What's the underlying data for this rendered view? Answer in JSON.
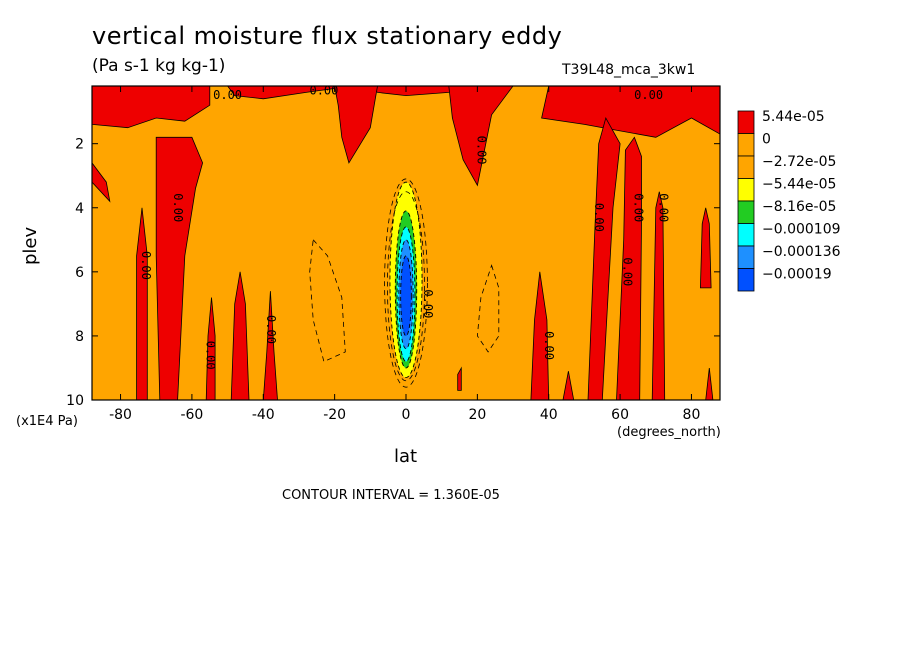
{
  "header": {
    "title": "vertical moisture flux stationary eddy",
    "units": "(Pa s-1 kg kg-1)",
    "run": "T39L48_mca_3kw1"
  },
  "footer": {
    "contour_interval": "CONTOUR INTERVAL = 1.360E-05"
  },
  "colors": {
    "red": "#ee0000",
    "orange": "#ffa500",
    "yellow": "#ffff00",
    "green": "#22cc22",
    "cyan": "#00ffff",
    "sky": "#1e90ff",
    "blue": "#0050ff"
  },
  "chart_data": {
    "type": "heatmap",
    "title": "vertical moisture flux stationary eddy",
    "subtitle": "(Pa s-1 kg kg-1)",
    "xlabel": "lat",
    "xunit": "(degrees_north)",
    "ylabel": "plev",
    "yunit": "(x1E4 Pa)",
    "xlim": [
      -88,
      88
    ],
    "ylim": [
      10,
      0.2
    ],
    "xticks": [
      -80,
      -60,
      -40,
      -20,
      0,
      20,
      40,
      60,
      80
    ],
    "yticks": [
      2,
      4,
      6,
      8,
      10
    ],
    "legend": {
      "placement": "right",
      "levels": [
        "5.44e-05",
        "0",
        "-2.72e-05",
        "-5.44e-05",
        "-8.16e-05",
        "-0.000109",
        "-0.000136",
        "-0.00019"
      ],
      "colors": [
        "#ee0000",
        "#ffa500",
        "#ffa500",
        "#ffff00",
        "#22cc22",
        "#00ffff",
        "#1e90ff",
        "#0050ff"
      ]
    },
    "background_level": "-2.72e-05",
    "contour_label": "0.00",
    "positive_regions": [
      {
        "name": "top-band-west",
        "polygon": [
          [
            -88,
            0.2
          ],
          [
            -55,
            0.2
          ],
          [
            -55,
            0.8
          ],
          [
            -62,
            1.3
          ],
          [
            -70,
            1.2
          ],
          [
            -78,
            1.5
          ],
          [
            -88,
            1.4
          ]
        ]
      },
      {
        "name": "top-band-central",
        "polygon": [
          [
            -50,
            0.2
          ],
          [
            -15,
            0.2
          ],
          [
            -28,
            0.4
          ],
          [
            -40,
            0.6
          ],
          [
            -48,
            0.5
          ]
        ]
      },
      {
        "name": "top-band-south",
        "polygon": [
          [
            -10,
            0.2
          ],
          [
            25,
            0.2
          ],
          [
            12,
            0.4
          ],
          [
            0,
            0.5
          ],
          [
            -8,
            0.4
          ]
        ]
      },
      {
        "name": "plume-left-of-equator",
        "polygon": [
          [
            -20,
            0.2
          ],
          [
            -8,
            0.2
          ],
          [
            -10,
            1.5
          ],
          [
            -16,
            2.6
          ],
          [
            -18,
            1.8
          ],
          [
            -19,
            0.8
          ]
        ]
      },
      {
        "name": "plume-20n",
        "polygon": [
          [
            12,
            0.2
          ],
          [
            30,
            0.2
          ],
          [
            24,
            1.1
          ],
          [
            22,
            2.2
          ],
          [
            20,
            3.3
          ],
          [
            16,
            2.5
          ],
          [
            13,
            1.2
          ]
        ]
      },
      {
        "name": "top-band-east",
        "polygon": [
          [
            40,
            0.2
          ],
          [
            88,
            0.2
          ],
          [
            88,
            1.7
          ],
          [
            80,
            1.2
          ],
          [
            70,
            1.8
          ],
          [
            60,
            1.6
          ],
          [
            50,
            1.4
          ],
          [
            38,
            1.2
          ]
        ]
      },
      {
        "name": "west-edge",
        "polygon": [
          [
            -88,
            2.6
          ],
          [
            -84,
            3.2
          ],
          [
            -83,
            3.8
          ],
          [
            -88,
            3.2
          ]
        ]
      },
      {
        "name": "tongue-n68",
        "polygon": [
          [
            -70,
            1.8
          ],
          [
            -60,
            1.8
          ],
          [
            -57,
            2.6
          ],
          [
            -59,
            3.4
          ],
          [
            -62,
            5.5
          ],
          [
            -64,
            10
          ],
          [
            -69,
            10
          ],
          [
            -70,
            5.5
          ]
        ]
      },
      {
        "name": "spike-n74",
        "polygon": [
          [
            -75.5,
            10
          ],
          [
            -75.5,
            5.5
          ],
          [
            -74,
            4.0
          ],
          [
            -72.5,
            5.5
          ],
          [
            -72.5,
            10
          ]
        ]
      },
      {
        "name": "spike-n55",
        "polygon": [
          [
            -56,
            10
          ],
          [
            -55.5,
            8
          ],
          [
            -54.5,
            6.8
          ],
          [
            -53.5,
            8
          ],
          [
            -53.5,
            10
          ]
        ]
      },
      {
        "name": "spike-n47",
        "polygon": [
          [
            -49,
            10
          ],
          [
            -48,
            7
          ],
          [
            -46.5,
            6.0
          ],
          [
            -45,
            7
          ],
          [
            -44,
            10
          ]
        ]
      },
      {
        "name": "spike-n38",
        "polygon": [
          [
            -40,
            10
          ],
          [
            -39,
            8.5
          ],
          [
            -38,
            6.6
          ],
          [
            -37,
            8.5
          ],
          [
            -36,
            10
          ]
        ]
      },
      {
        "name": "spike-15n",
        "polygon": [
          [
            14.5,
            9.2
          ],
          [
            15.5,
            9.0
          ],
          [
            15.5,
            9.7
          ],
          [
            14.5,
            9.7
          ]
        ]
      },
      {
        "name": "spike-37n",
        "polygon": [
          [
            35,
            10
          ],
          [
            36,
            7.5
          ],
          [
            37.5,
            6.0
          ],
          [
            39.5,
            7.5
          ],
          [
            40,
            10
          ]
        ]
      },
      {
        "name": "spike-46n",
        "polygon": [
          [
            44,
            10
          ],
          [
            45.5,
            9.1
          ],
          [
            47,
            10
          ]
        ]
      },
      {
        "name": "plume-53n",
        "polygon": [
          [
            51,
            10
          ],
          [
            53,
            4.5
          ],
          [
            54,
            2.0
          ],
          [
            56,
            1.2
          ],
          [
            60,
            2.0
          ],
          [
            58,
            4
          ],
          [
            56,
            8
          ],
          [
            55,
            10
          ]
        ]
      },
      {
        "name": "plume-62n",
        "polygon": [
          [
            59,
            10
          ],
          [
            61,
            5
          ],
          [
            61.5,
            2.2
          ],
          [
            64,
            1.8
          ],
          [
            66,
            2.4
          ],
          [
            66,
            4.5
          ],
          [
            65.5,
            10
          ]
        ]
      },
      {
        "name": "plume-70n",
        "polygon": [
          [
            69,
            10
          ],
          [
            70,
            4
          ],
          [
            71,
            3.5
          ],
          [
            72,
            4
          ],
          [
            72.5,
            10
          ]
        ]
      },
      {
        "name": "spike-83n",
        "polygon": [
          [
            82.5,
            6.5
          ],
          [
            83,
            4.5
          ],
          [
            84,
            4.0
          ],
          [
            85,
            4.5
          ],
          [
            85.5,
            6.5
          ]
        ]
      },
      {
        "name": "spike-86n",
        "polygon": [
          [
            84,
            10
          ],
          [
            85,
            9.0
          ],
          [
            86,
            10
          ]
        ]
      }
    ],
    "negative_core": [
      {
        "level": "-5.44e-05",
        "lat_center": 0,
        "p_top": 3.2,
        "p_bottom": 9.3,
        "half_width": 4.5
      },
      {
        "level": "-8.16e-05",
        "lat_center": 0,
        "p_top": 4.1,
        "p_bottom": 9.0,
        "half_width": 3.0
      },
      {
        "level": "-0.000109",
        "lat_center": 0,
        "p_top": 4.6,
        "p_bottom": 8.8,
        "half_width": 2.5
      },
      {
        "level": "-0.000136",
        "lat_center": 0,
        "p_top": 5.0,
        "p_bottom": 8.4,
        "half_width": 2.0
      },
      {
        "level": "-0.00019",
        "lat_center": 0,
        "p_top": 5.5,
        "p_bottom": 8.0,
        "half_width": 1.5
      }
    ],
    "dashed_contours": [
      {
        "polygon": [
          [
            -26,
            5.0
          ],
          [
            -22,
            5.5
          ],
          [
            -18,
            6.8
          ],
          [
            -17,
            8.5
          ],
          [
            -23,
            8.8
          ],
          [
            -26,
            7.5
          ],
          [
            -27,
            6
          ]
        ]
      },
      {
        "polygon": [
          [
            24,
            5.8
          ],
          [
            26,
            6.5
          ],
          [
            26,
            8.0
          ],
          [
            23,
            8.5
          ],
          [
            20,
            8.0
          ],
          [
            21,
            6.8
          ]
        ]
      }
    ],
    "contour_labels": [
      {
        "text": "0.00",
        "lat": -50,
        "p": 0.5,
        "rotate": false
      },
      {
        "text": "0.00",
        "lat": -23,
        "p": 0.35,
        "rotate": false
      },
      {
        "text": "0.00",
        "lat": 68,
        "p": 0.5,
        "rotate": false
      },
      {
        "text": "0.00",
        "lat": 21,
        "p": 2.2,
        "rotate": true
      },
      {
        "text": "0.00",
        "lat": -64,
        "p": 4.0,
        "rotate": true
      },
      {
        "text": "0.00",
        "lat": -73,
        "p": 5.8,
        "rotate": true
      },
      {
        "text": "0.00",
        "lat": -55,
        "p": 8.6,
        "rotate": true
      },
      {
        "text": "0.00",
        "lat": -38,
        "p": 7.8,
        "rotate": true
      },
      {
        "text": "0.00",
        "lat": 54,
        "p": 4.3,
        "rotate": true
      },
      {
        "text": "0.00",
        "lat": 65,
        "p": 4.0,
        "rotate": true
      },
      {
        "text": "0.00",
        "lat": 72,
        "p": 4.0,
        "rotate": true
      },
      {
        "text": "0.00",
        "lat": 62,
        "p": 6.0,
        "rotate": true
      },
      {
        "text": "0.00",
        "lat": 40,
        "p": 8.3,
        "rotate": true
      },
      {
        "text": "0.00",
        "lat": 6,
        "p": 7.0,
        "rotate": true
      }
    ]
  }
}
